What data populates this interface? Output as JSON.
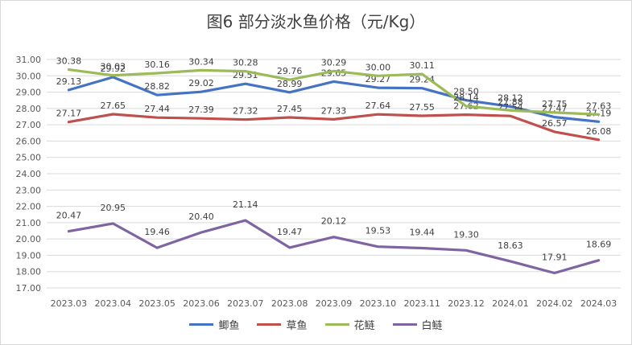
{
  "chart_data": {
    "type": "line",
    "title": "图6  部分淡水鱼价格（元/Kg）",
    "xlabel": "",
    "ylabel": "",
    "ylim": [
      17.0,
      31.0
    ],
    "yticks": [
      "17.00",
      "18.00",
      "19.00",
      "20.00",
      "21.00",
      "22.00",
      "23.00",
      "24.00",
      "25.00",
      "26.00",
      "27.00",
      "28.00",
      "29.00",
      "30.00",
      "31.00"
    ],
    "grid": true,
    "legend_position": "bottom",
    "categories": [
      "2023.03",
      "2023.04",
      "2023.05",
      "2023.06",
      "2023.07",
      "2023.08",
      "2023.09",
      "2023.10",
      "2023.11",
      "2023.12",
      "2024.01",
      "2024.02",
      "2024.03"
    ],
    "series": [
      {
        "name": "鲫鱼",
        "color": "#4472c4",
        "values": [
          29.13,
          29.92,
          28.82,
          29.02,
          29.51,
          28.99,
          29.65,
          29.27,
          29.24,
          28.5,
          28.12,
          27.47,
          27.19
        ],
        "labels": [
          "29.13",
          "29.92",
          "28.82",
          "29.02",
          "29.51",
          "28.99",
          "29.65",
          "29.27",
          "29.24",
          "28.50",
          "28.12",
          "27.47",
          "27.19"
        ]
      },
      {
        "name": "草鱼",
        "color": "#c0504d",
        "values": [
          27.17,
          27.65,
          27.44,
          27.39,
          27.32,
          27.45,
          27.33,
          27.64,
          27.55,
          27.62,
          27.54,
          26.57,
          26.08
        ],
        "labels": [
          "27.17",
          "27.65",
          "27.44",
          "27.39",
          "27.32",
          "27.45",
          "27.33",
          "27.64",
          "27.55",
          "27.62",
          "27.54",
          "26.57",
          "26.08"
        ]
      },
      {
        "name": "花鲢",
        "color": "#9bbb59",
        "values": [
          30.38,
          30.03,
          30.16,
          30.34,
          30.28,
          29.76,
          30.29,
          30.0,
          30.11,
          28.14,
          27.88,
          27.75,
          27.63
        ],
        "labels": [
          "30.38",
          "30.03",
          "30.16",
          "30.34",
          "30.28",
          "29.76",
          "30.29",
          "30.00",
          "30.11",
          "28.14",
          "27.88",
          "27.75",
          "27.63"
        ]
      },
      {
        "name": "白鲢",
        "color": "#8064a2",
        "values": [
          20.47,
          20.95,
          19.46,
          20.4,
          21.14,
          19.47,
          20.12,
          19.53,
          19.44,
          19.3,
          18.63,
          17.91,
          18.69
        ],
        "labels": [
          "20.47",
          "20.95",
          "19.46",
          "20.40",
          "21.14",
          "19.47",
          "20.12",
          "19.53",
          "19.44",
          "19.30",
          "18.63",
          "17.91",
          "18.69"
        ]
      }
    ]
  }
}
